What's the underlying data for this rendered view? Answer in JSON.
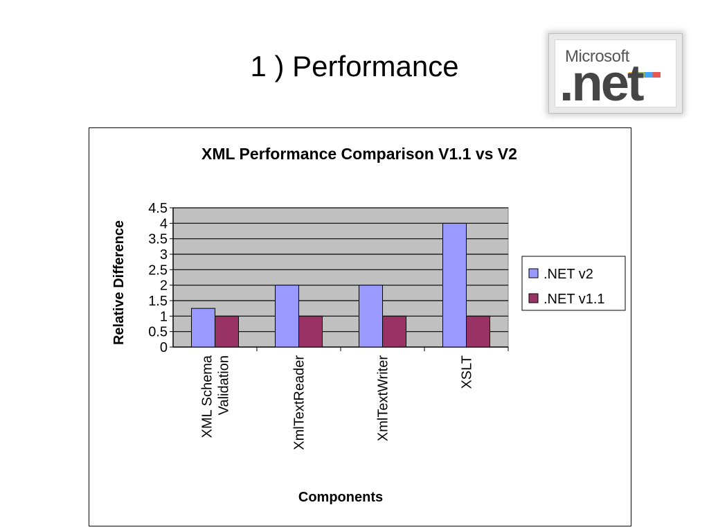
{
  "slide": {
    "title": "1 ) Performance",
    "logo": {
      "brand_text": "Microsoft",
      "product_text": ".net"
    }
  },
  "chart_data": {
    "type": "bar",
    "title": "XML Performance Comparison V1.1 vs V2",
    "xlabel": "Components",
    "ylabel": "Relative Difference",
    "categories": [
      "XML Schema Validation",
      "XmlTextReader",
      "XmlTextWriter",
      "XSLT"
    ],
    "category_lines": [
      [
        "XML Schema",
        "Validation"
      ],
      [
        "XmlTextReader"
      ],
      [
        "XmlTextWriter"
      ],
      [
        "XSLT"
      ]
    ],
    "series": [
      {
        "name": ".NET v2",
        "values": [
          1.25,
          2,
          2,
          4
        ],
        "color": "#9999ff"
      },
      {
        "name": ".NET v1.1",
        "values": [
          1,
          1,
          1,
          1
        ],
        "color": "#993366"
      }
    ],
    "ylim": [
      0,
      4.5
    ],
    "yticks": [
      "0",
      "0.5",
      "1",
      "1.5",
      "2",
      "2.5",
      "3",
      "3.5",
      "4",
      "4.5"
    ],
    "plot_background": "#c0c0c0",
    "grid": true,
    "legend": "right"
  }
}
